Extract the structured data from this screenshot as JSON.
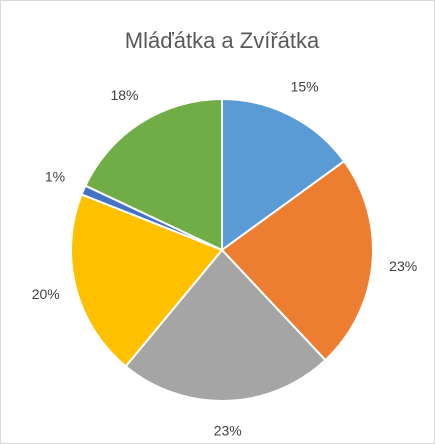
{
  "chart_data": {
    "type": "pie",
    "title": "Mláďátka a Zvířátka",
    "values": [
      15,
      23,
      23,
      20,
      1,
      18
    ],
    "value_labels": [
      "15%",
      "23%",
      "23%",
      "20%",
      "1%",
      "18%"
    ],
    "colors": [
      "#5b9bd5",
      "#ed7d31",
      "#a5a5a5",
      "#ffc000",
      "#4472c4",
      "#70ad47"
    ]
  }
}
